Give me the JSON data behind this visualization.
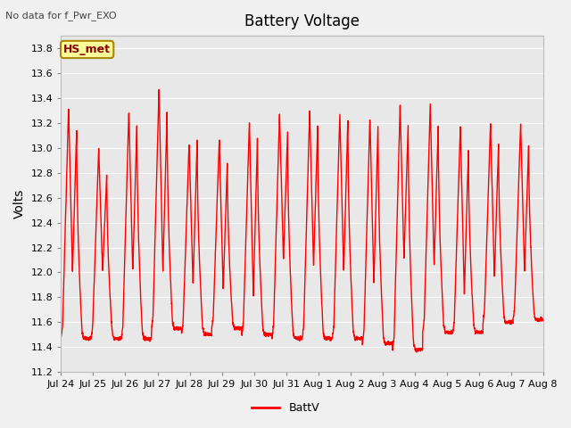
{
  "title": "Battery Voltage",
  "top_left_text": "No data for f_Pwr_EXO",
  "ylabel": "Volts",
  "legend_label": "BattV",
  "legend_color": "#ff0000",
  "line_color": "#ff0000",
  "fig_bg_color": "#f0f0f0",
  "plot_bg_color": "#e8e8e8",
  "ylim": [
    11.2,
    13.9
  ],
  "yticks": [
    11.2,
    11.4,
    11.6,
    11.8,
    12.0,
    12.2,
    12.4,
    12.6,
    12.8,
    13.0,
    13.2,
    13.4,
    13.6,
    13.8
  ],
  "xtick_labels": [
    "Jul 24",
    "Jul 25",
    "Jul 26",
    "Jul 27",
    "Jul 28",
    "Jul 29",
    "Jul 30",
    "Jul 31",
    "Aug 1",
    "Aug 2",
    "Aug 3",
    "Aug 4",
    "Aug 5",
    "Aug 6",
    "Aug 7",
    "Aug 8"
  ],
  "annotation_box_text": "HS_met",
  "annotation_box_color": "#ffff99",
  "annotation_box_edge_color": "#aa8800",
  "figsize": [
    6.4,
    4.8
  ],
  "dpi": 100
}
